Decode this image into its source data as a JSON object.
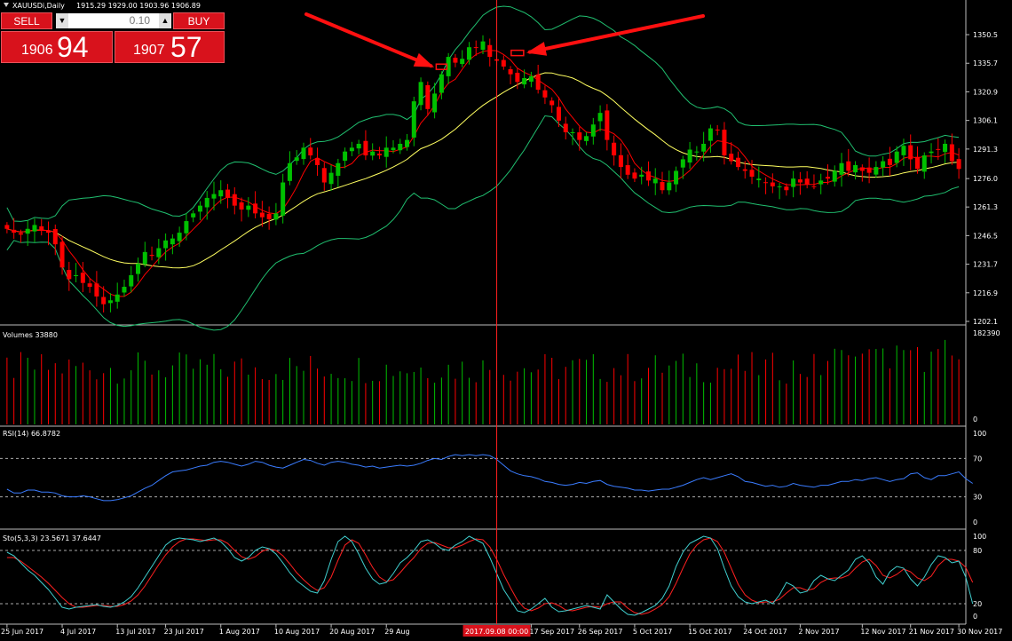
{
  "header": {
    "symbol_label": "XAUUSDi,Daily",
    "ohlc_text": "1915.29 1929.00 1903.96 1906.89"
  },
  "trade_panel": {
    "sell_label": "SELL",
    "buy_label": "BUY",
    "lot_value": "0.10",
    "bid_big": "1906",
    "bid_small": "94",
    "ask_big": "1907",
    "ask_small": "57"
  },
  "colors": {
    "bull": "#00c000",
    "bear": "#ff0000",
    "ma_fast": "#ff0000",
    "ma_slow": "#ffff60",
    "bands": "#20c070",
    "rsi": "#3a7cff",
    "sto_main": "#40d0d0",
    "sto_signal": "#ff2020",
    "crosshair": "#ff2020",
    "arrows": "#ff1010"
  },
  "chart_data": [
    {
      "type": "candlestick",
      "title": "XAUUSDi,Daily",
      "y_ticks": [
        1350.5,
        1335.7,
        1320.9,
        1306.1,
        1291.3,
        1276.0,
        1261.3,
        1246.5,
        1231.7,
        1216.9,
        1202.1
      ],
      "ylim": [
        1202.1,
        1362.0
      ],
      "x_tick_labels": [
        "25 Jun 2017",
        "4 Jul 2017",
        "13 Jul 2017",
        "23 Jul 2017",
        "1 Aug 2017",
        "10 Aug 2017",
        "20 Aug 2017",
        "29 Aug",
        "17 Sep 2017",
        "26 Sep 2017",
        "5 Oct 2017",
        "15 Oct 2017",
        "24 Oct 2017",
        "2 Nov 2017",
        "12 Nov 2017",
        "21 Nov 2017",
        "30 Nov 2017"
      ],
      "crosshair_label": "2017.09.08 00:00",
      "indicators": [
        "Moving Average (fast)",
        "Moving Average (slow)",
        "Bollinger Bands"
      ],
      "close_path": [
        1250,
        1248,
        1247,
        1250,
        1252,
        1249,
        1248,
        1242,
        1230,
        1224,
        1226,
        1222,
        1220,
        1215,
        1211,
        1213,
        1216,
        1220,
        1226,
        1232,
        1238,
        1236,
        1240,
        1244,
        1245,
        1248,
        1254,
        1258,
        1262,
        1266,
        1268,
        1270,
        1266,
        1262,
        1260,
        1262,
        1258,
        1256,
        1255,
        1258,
        1274,
        1284,
        1287,
        1292,
        1288,
        1283,
        1274,
        1279,
        1284,
        1290,
        1292,
        1294,
        1288,
        1290,
        1288,
        1292,
        1292,
        1294,
        1296,
        1316,
        1326,
        1312,
        1320,
        1330,
        1339,
        1336,
        1338,
        1344,
        1344,
        1347,
        1339,
        1337,
        1334,
        1330,
        1326,
        1328,
        1329,
        1322,
        1318,
        1314,
        1306,
        1300,
        1300,
        1296,
        1298,
        1304,
        1310,
        1296,
        1288,
        1282,
        1278,
        1276,
        1278,
        1275,
        1276,
        1270,
        1274,
        1280,
        1286,
        1291,
        1290,
        1294,
        1302,
        1301,
        1288,
        1285,
        1282,
        1280,
        1277,
        1276,
        1274,
        1272,
        1272,
        1270,
        1276,
        1274,
        1273,
        1272,
        1275,
        1276,
        1280,
        1284,
        1280,
        1283,
        1280,
        1279,
        1282,
        1285,
        1283,
        1290,
        1293,
        1286,
        1281,
        1288,
        1290,
        1291,
        1294,
        1285,
        1281
      ]
    },
    {
      "type": "bar",
      "title": "Volumes",
      "title_value": "33880",
      "y_ticks": [
        182390,
        0
      ]
    },
    {
      "type": "line",
      "title": "RSI(14)",
      "title_value": "66.8782",
      "y_ticks": [
        100,
        70,
        30,
        0
      ],
      "levels": [
        70,
        30
      ],
      "values": [
        38,
        34,
        34,
        37,
        37,
        35,
        35,
        34,
        31,
        30,
        30,
        31,
        30,
        28,
        26,
        26,
        27,
        29,
        31,
        35,
        39,
        42,
        47,
        52,
        56,
        57,
        58,
        60,
        62,
        63,
        66,
        67,
        66,
        64,
        62,
        64,
        67,
        66,
        63,
        61,
        60,
        63,
        66,
        69,
        68,
        65,
        63,
        66,
        67,
        66,
        64,
        63,
        61,
        62,
        60,
        61,
        62,
        63,
        62,
        63,
        65,
        68,
        70,
        69,
        72,
        74,
        73,
        74,
        73,
        74,
        73,
        69,
        63,
        57,
        54,
        52,
        51,
        49,
        46,
        45,
        43,
        42,
        43,
        45,
        44,
        46,
        47,
        43,
        41,
        40,
        39,
        37,
        37,
        36,
        37,
        38,
        38,
        40,
        42,
        45,
        48,
        50,
        48,
        50,
        52,
        54,
        51,
        46,
        45,
        43,
        41,
        42,
        40,
        41,
        44,
        42,
        41,
        40,
        42,
        42,
        44,
        46,
        46,
        48,
        47,
        49,
        50,
        48,
        46,
        48,
        49,
        54,
        55,
        50,
        48,
        52,
        52,
        54,
        56,
        49,
        44
      ]
    },
    {
      "type": "line",
      "title": "Sto(5,3,3)",
      "title_value": "23.5671 37.6447",
      "y_ticks": [
        100,
        80,
        20,
        0
      ],
      "levels": [
        80,
        20
      ],
      "series": [
        {
          "name": "main",
          "values": [
            78,
            74,
            66,
            58,
            52,
            44,
            36,
            26,
            16,
            14,
            16,
            17,
            18,
            19,
            17,
            16,
            18,
            22,
            28,
            38,
            50,
            62,
            74,
            86,
            92,
            94,
            93,
            92,
            90,
            92,
            94,
            90,
            82,
            72,
            68,
            72,
            80,
            84,
            82,
            76,
            66,
            55,
            46,
            40,
            34,
            32,
            46,
            70,
            90,
            96,
            90,
            76,
            60,
            48,
            42,
            44,
            54,
            66,
            72,
            80,
            90,
            92,
            88,
            82,
            80,
            86,
            90,
            96,
            92,
            88,
            72,
            54,
            36,
            24,
            12,
            10,
            14,
            20,
            26,
            16,
            11,
            12,
            14,
            16,
            18,
            16,
            14,
            30,
            22,
            14,
            8,
            7,
            10,
            14,
            18,
            26,
            40,
            62,
            78,
            88,
            92,
            96,
            94,
            82,
            60,
            40,
            28,
            22,
            20,
            22,
            24,
            20,
            30,
            44,
            40,
            32,
            34,
            46,
            52,
            48,
            46,
            52,
            58,
            70,
            74,
            66,
            50,
            42,
            56,
            62,
            60,
            48,
            40,
            50,
            64,
            74,
            72,
            66,
            68,
            50,
            20
          ]
        },
        {
          "name": "signal",
          "values": [
            72,
            72,
            68,
            62,
            56,
            50,
            43,
            35,
            27,
            20,
            16,
            16,
            17,
            18,
            18,
            17,
            17,
            19,
            23,
            30,
            40,
            52,
            64,
            75,
            84,
            90,
            93,
            93,
            92,
            91,
            92,
            92,
            88,
            80,
            73,
            70,
            73,
            79,
            82,
            80,
            74,
            65,
            55,
            47,
            40,
            35,
            38,
            50,
            69,
            86,
            92,
            88,
            75,
            61,
            50,
            45,
            47,
            55,
            64,
            72,
            82,
            88,
            89,
            86,
            83,
            83,
            86,
            90,
            93,
            92,
            84,
            70,
            53,
            38,
            24,
            15,
            12,
            15,
            20,
            21,
            18,
            13,
            12,
            14,
            16,
            17,
            16,
            20,
            22,
            22,
            15,
            10,
            8,
            10,
            14,
            19,
            28,
            43,
            60,
            76,
            86,
            92,
            94,
            90,
            78,
            60,
            42,
            30,
            24,
            21,
            22,
            22,
            25,
            32,
            38,
            38,
            35,
            37,
            44,
            48,
            49,
            49,
            52,
            60,
            67,
            70,
            63,
            52,
            49,
            53,
            59,
            56,
            49,
            46,
            51,
            63,
            70,
            70,
            68,
            61,
            44
          ]
        }
      ]
    }
  ]
}
